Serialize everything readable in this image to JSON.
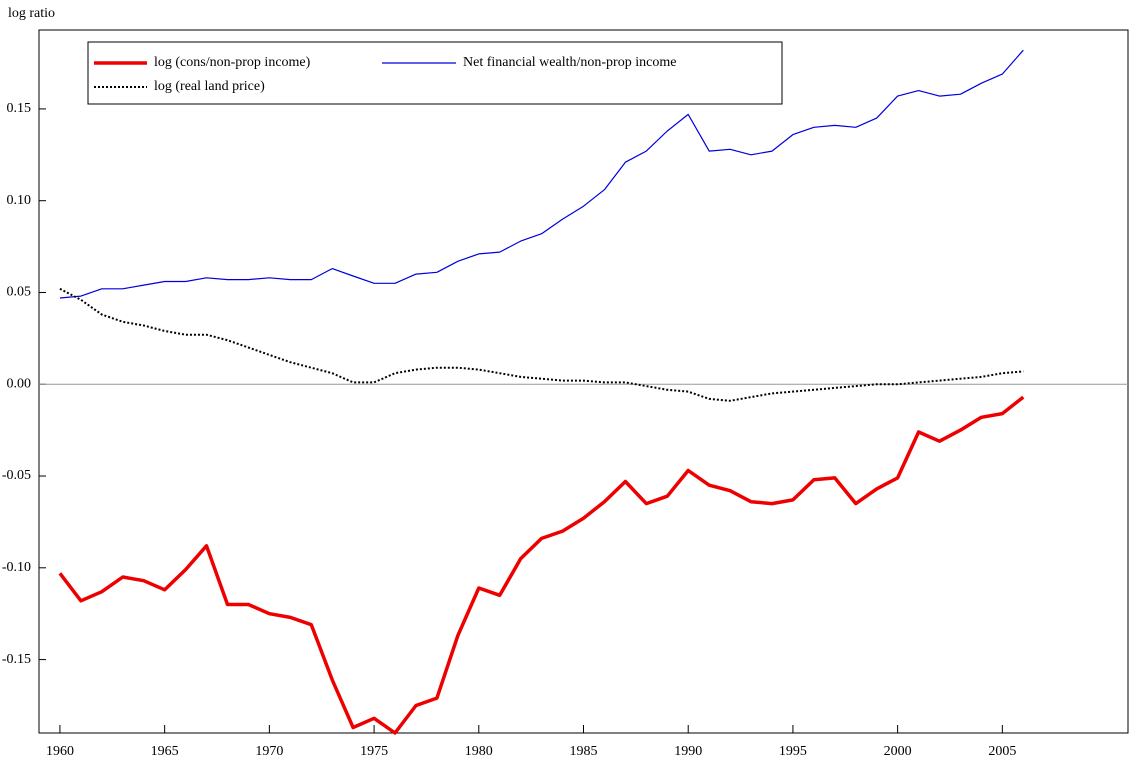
{
  "chart_data": {
    "type": "line",
    "y_label": "log ratio",
    "x": [
      1960,
      1961,
      1962,
      1963,
      1964,
      1965,
      1966,
      1967,
      1968,
      1969,
      1970,
      1971,
      1972,
      1973,
      1974,
      1975,
      1976,
      1977,
      1978,
      1979,
      1980,
      1981,
      1982,
      1983,
      1984,
      1985,
      1986,
      1987,
      1988,
      1989,
      1990,
      1991,
      1992,
      1993,
      1994,
      1995,
      1996,
      1997,
      1998,
      1999,
      2000,
      2001,
      2002,
      2003,
      2004,
      2005,
      2006
    ],
    "series": [
      {
        "name": "log (cons/non-prop income)",
        "color": "#ee0000",
        "width": 3.5,
        "dash": "none",
        "values": [
          -0.103,
          -0.118,
          -0.113,
          -0.105,
          -0.107,
          -0.112,
          -0.101,
          -0.088,
          -0.12,
          -0.12,
          -0.125,
          -0.127,
          -0.131,
          -0.161,
          -0.187,
          -0.182,
          -0.19,
          -0.175,
          -0.171,
          -0.137,
          -0.111,
          -0.115,
          -0.095,
          -0.084,
          -0.08,
          -0.073,
          -0.064,
          -0.053,
          -0.065,
          -0.061,
          -0.047,
          -0.055,
          -0.058,
          -0.064,
          -0.065,
          -0.063,
          -0.052,
          -0.051,
          -0.065,
          -0.057,
          -0.051,
          -0.026,
          -0.031,
          -0.025,
          -0.018,
          -0.016,
          -0.007
        ]
      },
      {
        "name": "Net financial wealth/non-prop income",
        "color": "#0000dd",
        "width": 1.2,
        "dash": "none",
        "values": [
          0.047,
          0.048,
          0.052,
          0.052,
          0.054,
          0.056,
          0.056,
          0.058,
          0.057,
          0.057,
          0.058,
          0.057,
          0.057,
          0.063,
          0.059,
          0.055,
          0.055,
          0.06,
          0.061,
          0.067,
          0.071,
          0.072,
          0.078,
          0.082,
          0.09,
          0.097,
          0.106,
          0.121,
          0.127,
          0.138,
          0.147,
          0.127,
          0.128,
          0.125,
          0.127,
          0.136,
          0.14,
          0.141,
          0.14,
          0.145,
          0.157,
          0.16,
          0.157,
          0.158,
          0.164,
          0.169,
          0.182
        ]
      },
      {
        "name": "log (real land price)",
        "color": "#000000",
        "width": 2,
        "dash": "2 2",
        "values": [
          0.052,
          0.046,
          0.038,
          0.034,
          0.032,
          0.029,
          0.027,
          0.027,
          0.024,
          0.02,
          0.016,
          0.012,
          0.009,
          0.006,
          0.001,
          0.001,
          0.006,
          0.008,
          0.009,
          0.009,
          0.008,
          0.006,
          0.004,
          0.003,
          0.002,
          0.002,
          0.001,
          0.001,
          -0.001,
          -0.003,
          -0.004,
          -0.008,
          -0.009,
          -0.007,
          -0.005,
          -0.004,
          -0.003,
          -0.002,
          -0.001,
          0,
          0.0,
          0.001,
          0.002,
          0.003,
          0.004,
          0.006,
          0.007
        ]
      }
    ],
    "xlim": [
      1959,
      2011
    ],
    "xticks": [
      1960,
      1965,
      1970,
      1975,
      1980,
      1985,
      1990,
      1995,
      2000,
      2005
    ],
    "ylim": [
      -0.19,
      0.193
    ],
    "yticks": [
      {
        "value": -0.15,
        "label": "-0.15"
      },
      {
        "value": -0.1,
        "label": "-0.10"
      },
      {
        "value": -0.05,
        "label": "-0.05"
      },
      {
        "value": 0,
        "label": "0.00"
      },
      {
        "value": 0.05,
        "label": "0.05"
      },
      {
        "value": 0.1,
        "label": "0.10"
      },
      {
        "value": 0.15,
        "label": "0.15"
      }
    ],
    "zero_line": true,
    "legend": "top-left"
  }
}
